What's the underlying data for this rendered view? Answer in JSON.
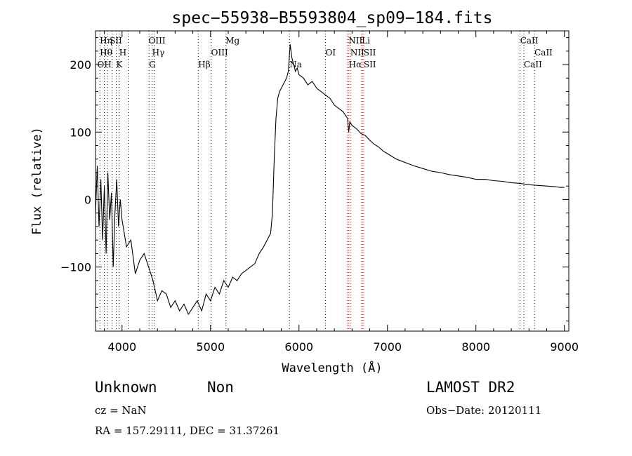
{
  "chart_data": {
    "type": "line",
    "title": "spec−55938−B5593804_sp09−184.fits",
    "xlabel": "Wavelength (Å)",
    "ylabel": "Flux (relative)",
    "xlim": [
      3700,
      9050
    ],
    "ylim": [
      -195,
      250
    ],
    "xticks": [
      4000,
      5000,
      6000,
      7000,
      8000,
      9000
    ],
    "yticks": [
      -100,
      0,
      100,
      200
    ],
    "ytick_labels": [
      "−100",
      "0",
      "100",
      "200"
    ],
    "grid": false,
    "series": [
      {
        "x": [
          3700,
          3720,
          3740,
          3760,
          3780,
          3800,
          3820,
          3840,
          3860,
          3880,
          3900,
          3920,
          3940,
          3960,
          3980,
          4000,
          4050,
          4100,
          4150,
          4200,
          4250,
          4300,
          4350,
          4400,
          4450,
          4500,
          4550,
          4600,
          4650,
          4700,
          4750,
          4800,
          4850,
          4900,
          4950,
          5000,
          5050,
          5100,
          5150,
          5200,
          5250,
          5300,
          5350,
          5400,
          5450,
          5500,
          5550,
          5600,
          5640,
          5680,
          5700,
          5720,
          5740,
          5760,
          5780,
          5800,
          5820,
          5840,
          5860,
          5880,
          5900,
          5920,
          5940,
          5960,
          5980,
          6000,
          6050,
          6100,
          6150,
          6200,
          6250,
          6300,
          6350,
          6400,
          6450,
          6500,
          6550,
          6562,
          6575,
          6600,
          6650,
          6700,
          6750,
          6800,
          6850,
          6900,
          6950,
          7000,
          7100,
          7200,
          7300,
          7400,
          7500,
          7600,
          7700,
          7800,
          7900,
          8000,
          8100,
          8200,
          8300,
          8400,
          8500,
          8600,
          8700,
          8800,
          8900,
          8950,
          9000
        ],
        "y": [
          -20,
          50,
          -40,
          30,
          -60,
          20,
          -80,
          40,
          -30,
          10,
          -100,
          -20,
          30,
          -40,
          0,
          -30,
          -70,
          -60,
          -110,
          -90,
          -80,
          -100,
          -120,
          -150,
          -135,
          -140,
          -160,
          -150,
          -165,
          -155,
          -170,
          -160,
          -150,
          -165,
          -140,
          -150,
          -130,
          -140,
          -120,
          -130,
          -115,
          -120,
          -110,
          -105,
          -100,
          -95,
          -80,
          -70,
          -60,
          -50,
          -20,
          60,
          120,
          150,
          160,
          165,
          170,
          175,
          180,
          190,
          230,
          210,
          200,
          190,
          195,
          185,
          180,
          170,
          175,
          165,
          160,
          155,
          150,
          140,
          135,
          130,
          120,
          100,
          115,
          110,
          105,
          98,
          95,
          88,
          82,
          78,
          72,
          68,
          60,
          55,
          50,
          46,
          42,
          40,
          37,
          35,
          33,
          30,
          30,
          28,
          27,
          25,
          24,
          22,
          21,
          20,
          19,
          18,
          18
        ]
      }
    ],
    "line_labels": [
      {
        "x": 3750,
        "label": "Hη",
        "row": 1
      },
      {
        "x": 3860,
        "label": "SII",
        "row": 1
      },
      {
        "x": 4300,
        "label": "OIII",
        "row": 1
      },
      {
        "x": 5170,
        "label": "Mg",
        "row": 1
      },
      {
        "x": 6560,
        "label": "NII",
        "row": 1
      },
      {
        "x": 6710,
        "label": "Li",
        "row": 1
      },
      {
        "x": 8500,
        "label": "CaII",
        "row": 1
      },
      {
        "x": 3750,
        "label": "Hθ",
        "row": 2
      },
      {
        "x": 3968,
        "label": "H",
        "row": 2
      },
      {
        "x": 4340,
        "label": "Hγ",
        "row": 2
      },
      {
        "x": 5007,
        "label": "OIII",
        "row": 2
      },
      {
        "x": 6300,
        "label": "OI",
        "row": 2
      },
      {
        "x": 6580,
        "label": "NII",
        "row": 2
      },
      {
        "x": 6730,
        "label": "SII",
        "row": 2
      },
      {
        "x": 8662,
        "label": "CaII",
        "row": 2
      },
      {
        "x": 3720,
        "label": "OH",
        "row": 3
      },
      {
        "x": 3934,
        "label": "K",
        "row": 3
      },
      {
        "x": 4305,
        "label": "G",
        "row": 3
      },
      {
        "x": 4861,
        "label": "Hβ",
        "row": 3
      },
      {
        "x": 5893,
        "label": "Na",
        "row": 3
      },
      {
        "x": 6563,
        "label": "Hα",
        "row": 3
      },
      {
        "x": 6731,
        "label": "SII",
        "row": 3
      },
      {
        "x": 8542,
        "label": "CaII",
        "row": 3
      }
    ],
    "line_markers": [
      {
        "x": 3750,
        "color": "#000000"
      },
      {
        "x": 3800,
        "color": "#000000"
      },
      {
        "x": 3835,
        "color": "#000000"
      },
      {
        "x": 3889,
        "color": "#000000"
      },
      {
        "x": 3934,
        "color": "#000000"
      },
      {
        "x": 3968,
        "color": "#000000"
      },
      {
        "x": 4070,
        "color": "#000000"
      },
      {
        "x": 4305,
        "color": "#000000"
      },
      {
        "x": 4340,
        "color": "#000000"
      },
      {
        "x": 4363,
        "color": "#000000"
      },
      {
        "x": 4861,
        "color": "#000000"
      },
      {
        "x": 5007,
        "color": "#000000"
      },
      {
        "x": 5175,
        "color": "#000000"
      },
      {
        "x": 5893,
        "color": "#000000"
      },
      {
        "x": 6300,
        "color": "#000000"
      },
      {
        "x": 6548,
        "color": "#ff0000"
      },
      {
        "x": 6563,
        "color": "#ff0000"
      },
      {
        "x": 6583,
        "color": "#ff0000"
      },
      {
        "x": 6708,
        "color": "#ff0000"
      },
      {
        "x": 6717,
        "color": "#ff0000"
      },
      {
        "x": 6731,
        "color": "#ff0000"
      },
      {
        "x": 8498,
        "color": "#000000"
      },
      {
        "x": 8542,
        "color": "#000000"
      },
      {
        "x": 8662,
        "color": "#000000"
      }
    ]
  },
  "info": {
    "class": "Unknown",
    "subclass": "Non",
    "survey": "LAMOST DR2",
    "cz": "cz = NaN",
    "obs_date": "Obs−Date: 20120111",
    "coords": "RA = 157.29111, DEC =  31.37261"
  }
}
